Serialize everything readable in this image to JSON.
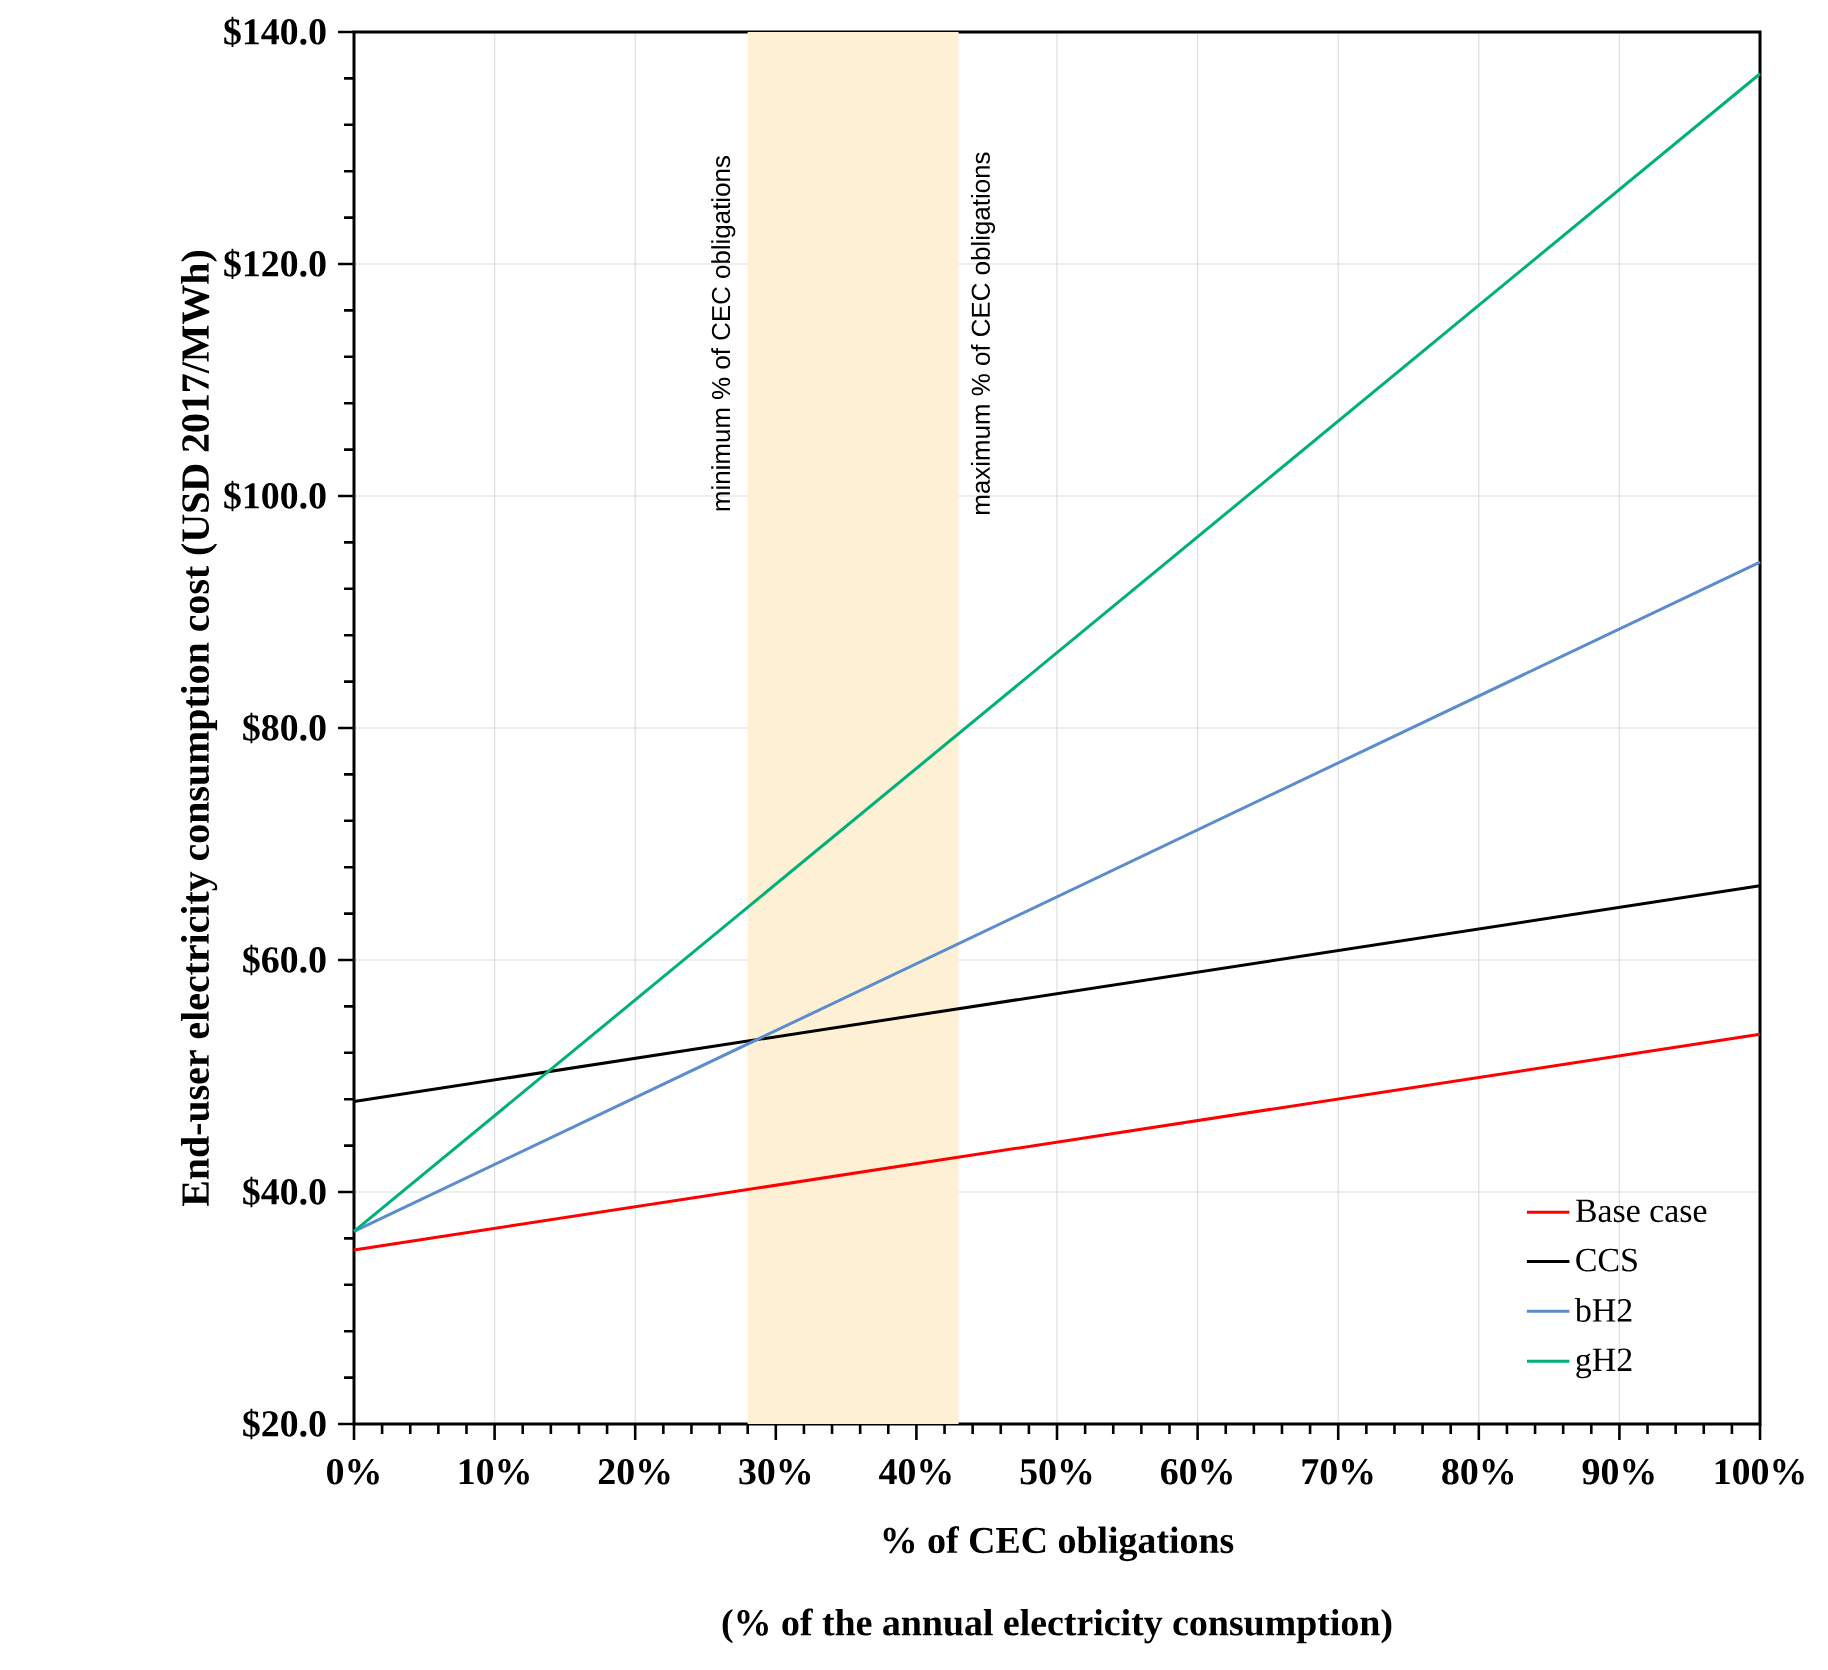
{
  "chart_data": {
    "type": "line",
    "xlabel": "% of CEC obligations",
    "ylabel": "End-user electricity consumption cost (USD 2017/MWh)",
    "x": [
      0,
      100
    ],
    "series": [
      {
        "name": "Base case",
        "color": "#ff0000",
        "values": [
          35.0,
          53.6
        ]
      },
      {
        "name": "CCS",
        "color": "#000000",
        "values": [
          47.8,
          66.4
        ]
      },
      {
        "name": "bH2",
        "color": "#5b8ccc",
        "values": [
          36.6,
          94.3
        ]
      },
      {
        "name": "gH2",
        "color": "#00b07a",
        "values": [
          36.6,
          136.4
        ]
      }
    ],
    "xlim": [
      0,
      100
    ],
    "xticks": [
      {
        "value": 0,
        "label": "0%"
      },
      {
        "value": 10,
        "label": "10%"
      },
      {
        "value": 20,
        "label": "20%"
      },
      {
        "value": 30,
        "label": "30%"
      },
      {
        "value": 40,
        "label": "40%"
      },
      {
        "value": 50,
        "label": "50%"
      },
      {
        "value": 60,
        "label": "60%"
      },
      {
        "value": 70,
        "label": "70%"
      },
      {
        "value": 80,
        "label": "80%"
      },
      {
        "value": 90,
        "label": "90%"
      },
      {
        "value": 100,
        "label": "100%"
      }
    ],
    "ylim": [
      20,
      140
    ],
    "yticks": [
      {
        "value": 20,
        "label": "$20.0"
      },
      {
        "value": 40,
        "label": "$40.0"
      },
      {
        "value": 60,
        "label": "$60.0"
      },
      {
        "value": 80,
        "label": "$80.0"
      },
      {
        "value": 100,
        "label": "$100.0"
      },
      {
        "value": 120,
        "label": "$120.0"
      },
      {
        "value": 140,
        "label": "$140.0"
      }
    ],
    "bands": [
      {
        "axis": "x",
        "from": 28,
        "to": 43,
        "color": "#fdf0d5"
      }
    ],
    "annotations": [
      {
        "text": "minimum % of CEC obligations",
        "x": 28,
        "y": 114
      },
      {
        "text": "maximum % of CEC obligations",
        "x": 43,
        "y": 114
      },
      "(% of the annual electricity consumption)"
    ],
    "grid": true,
    "legend": "bottom right",
    "marker": "none",
    "line_style": "solid"
  }
}
